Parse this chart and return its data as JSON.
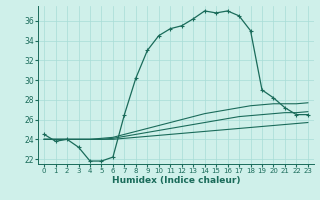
{
  "xlabel": "Humidex (Indice chaleur)",
  "bg_color": "#cff0ea",
  "line_color": "#1a6b5a",
  "grid_color": "#a8ddd6",
  "xlim": [
    -0.5,
    23.5
  ],
  "ylim": [
    21.5,
    37.5
  ],
  "xticks": [
    0,
    1,
    2,
    3,
    4,
    5,
    6,
    7,
    8,
    9,
    10,
    11,
    12,
    13,
    14,
    15,
    16,
    17,
    18,
    19,
    20,
    21,
    22,
    23
  ],
  "yticks": [
    22,
    24,
    26,
    28,
    30,
    32,
    34,
    36
  ],
  "series": [
    [
      24.5,
      23.8,
      24.0,
      23.2,
      21.8,
      21.8,
      22.2,
      26.5,
      30.2,
      33.0,
      34.5,
      35.2,
      35.5,
      36.2,
      37.0,
      36.8,
      37.0,
      36.5,
      35.0,
      29.0,
      28.2,
      27.2,
      26.5,
      26.5
    ],
    [
      24.0,
      24.0,
      24.0,
      24.0,
      24.0,
      24.0,
      24.0,
      24.1,
      24.2,
      24.3,
      24.4,
      24.5,
      24.6,
      24.7,
      24.8,
      24.9,
      25.0,
      25.1,
      25.2,
      25.3,
      25.4,
      25.5,
      25.6,
      25.7
    ],
    [
      24.0,
      24.0,
      24.0,
      24.0,
      24.0,
      24.0,
      24.1,
      24.3,
      24.5,
      24.7,
      24.9,
      25.1,
      25.3,
      25.5,
      25.7,
      25.9,
      26.1,
      26.3,
      26.4,
      26.5,
      26.6,
      26.7,
      26.7,
      26.8
    ],
    [
      24.0,
      24.0,
      24.0,
      24.0,
      24.0,
      24.1,
      24.2,
      24.5,
      24.8,
      25.1,
      25.4,
      25.7,
      26.0,
      26.3,
      26.6,
      26.8,
      27.0,
      27.2,
      27.4,
      27.5,
      27.6,
      27.6,
      27.6,
      27.7
    ]
  ]
}
